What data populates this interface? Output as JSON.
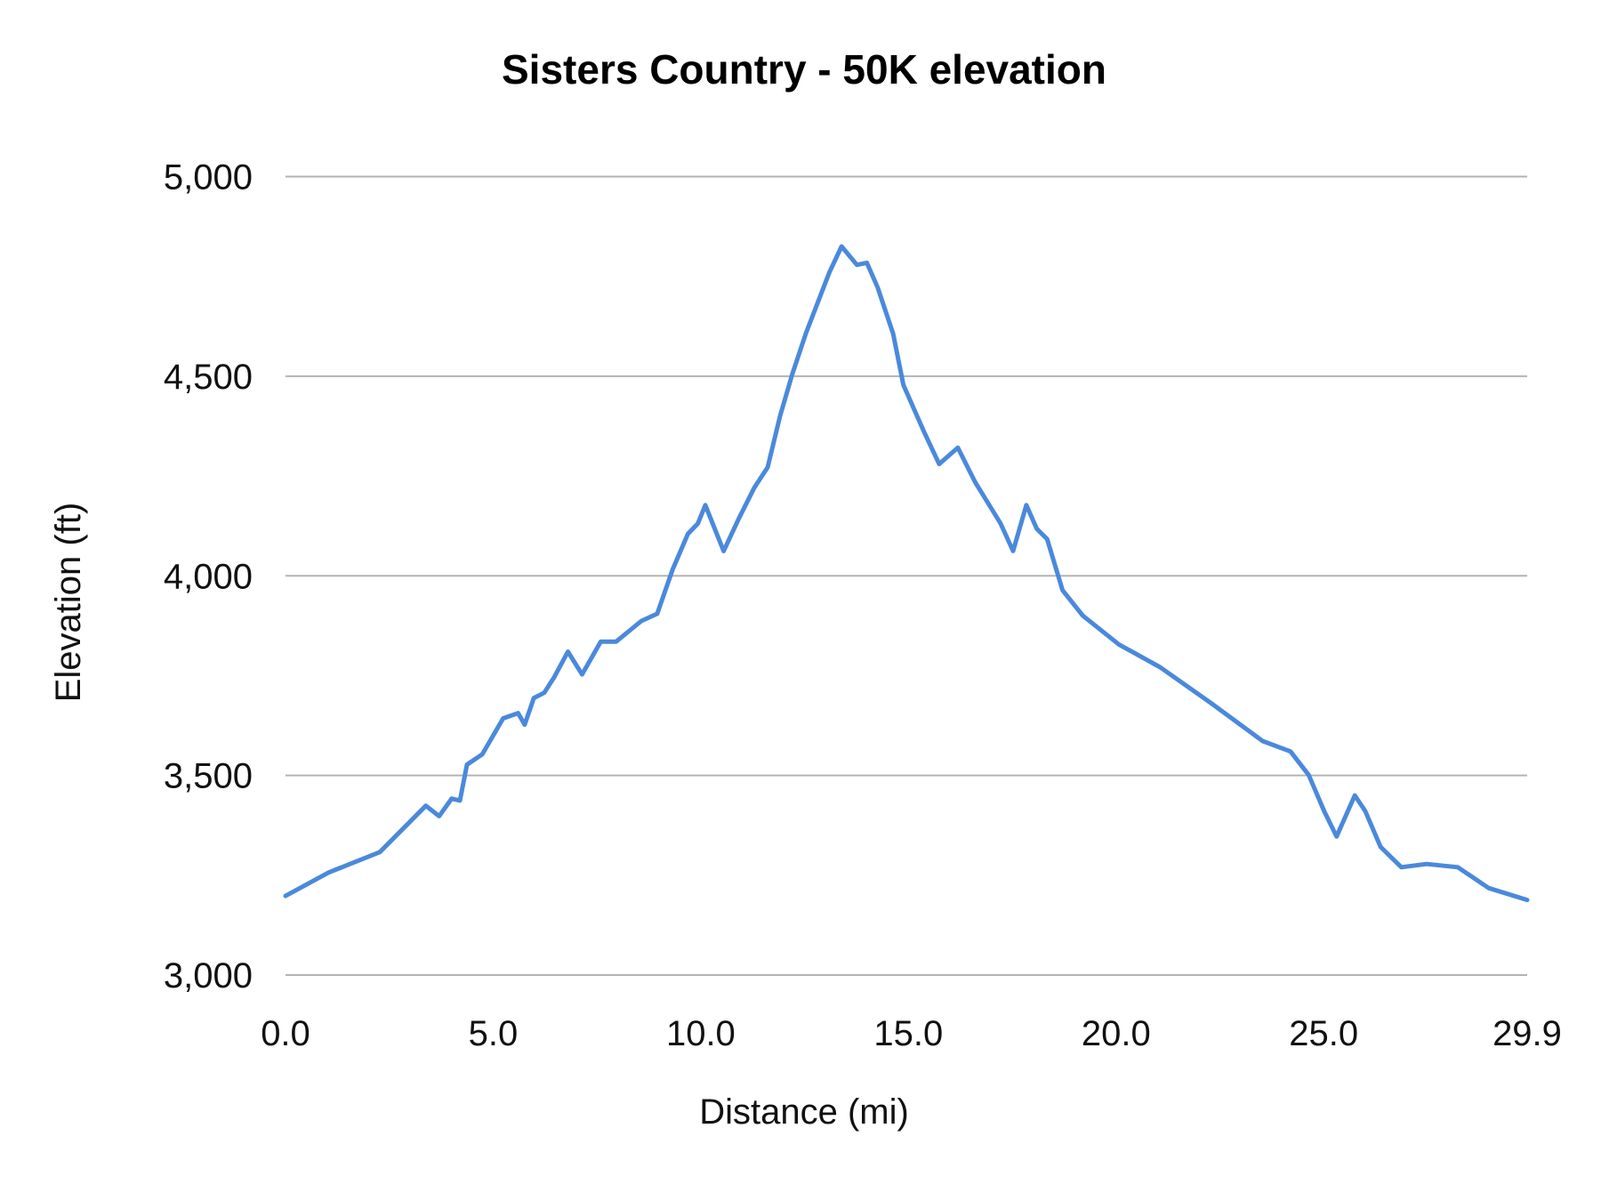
{
  "chart_data": {
    "type": "line",
    "title": "Sisters Country - 50K elevation",
    "xlabel": "Distance (mi)",
    "ylabel": "Elevation (ft)",
    "xlim": [
      0,
      29.9
    ],
    "ylim": [
      3000,
      5000
    ],
    "x_ticks": [
      "0.0",
      "5.0",
      "10.0",
      "15.0",
      "20.0",
      "25.0",
      "29.9"
    ],
    "x_tick_values": [
      0,
      5,
      10,
      15,
      20,
      25,
      29.9
    ],
    "y_ticks": [
      "3,000",
      "3,500",
      "4,000",
      "4,500",
      "5,000"
    ],
    "y_tick_values": [
      3000,
      3500,
      4000,
      4500,
      5000
    ],
    "grid": "horizontal",
    "legend": "none",
    "line_color": "#4a89dc",
    "grid_color": "#b3b3b3",
    "series": [
      {
        "x": [
          0,
          1.04,
          2.27,
          3.38,
          3.7,
          4.0,
          4.2,
          4.37,
          4.74,
          5.24,
          5.6,
          5.76,
          5.98,
          6.23,
          6.47,
          6.8,
          7.14,
          7.59,
          7.96,
          8.57,
          8.95,
          9.32,
          9.69,
          9.93,
          10.11,
          10.55,
          10.92,
          11.29,
          11.61,
          11.91,
          12.2,
          12.53,
          13.1,
          13.39,
          13.76,
          14.0,
          14.26,
          14.63,
          14.88,
          15.37,
          15.74,
          16.19,
          16.61,
          17.22,
          17.52,
          17.84,
          18.09,
          18.34,
          18.71,
          19.2,
          20.07,
          21.06,
          22.29,
          23.53,
          24.2,
          24.64,
          25.01,
          25.31,
          25.75,
          26.0,
          26.37,
          26.87,
          27.48,
          28.23,
          28.97,
          29.9
        ],
        "y": [
          3198,
          3257,
          3308,
          3424,
          3398,
          3442,
          3437,
          3527,
          3553,
          3643,
          3656,
          3627,
          3694,
          3707,
          3746,
          3810,
          3753,
          3835,
          3835,
          3887,
          3905,
          4015,
          4105,
          4131,
          4177,
          4062,
          4144,
          4221,
          4272,
          4401,
          4504,
          4607,
          4761,
          4825,
          4779,
          4784,
          4722,
          4607,
          4478,
          4362,
          4280,
          4321,
          4234,
          4131,
          4062,
          4177,
          4118,
          4092,
          3964,
          3900,
          3828,
          3771,
          3681,
          3586,
          3560,
          3501,
          3411,
          3347,
          3450,
          3411,
          3321,
          3270,
          3278,
          3270,
          3218,
          3188
        ]
      }
    ]
  }
}
